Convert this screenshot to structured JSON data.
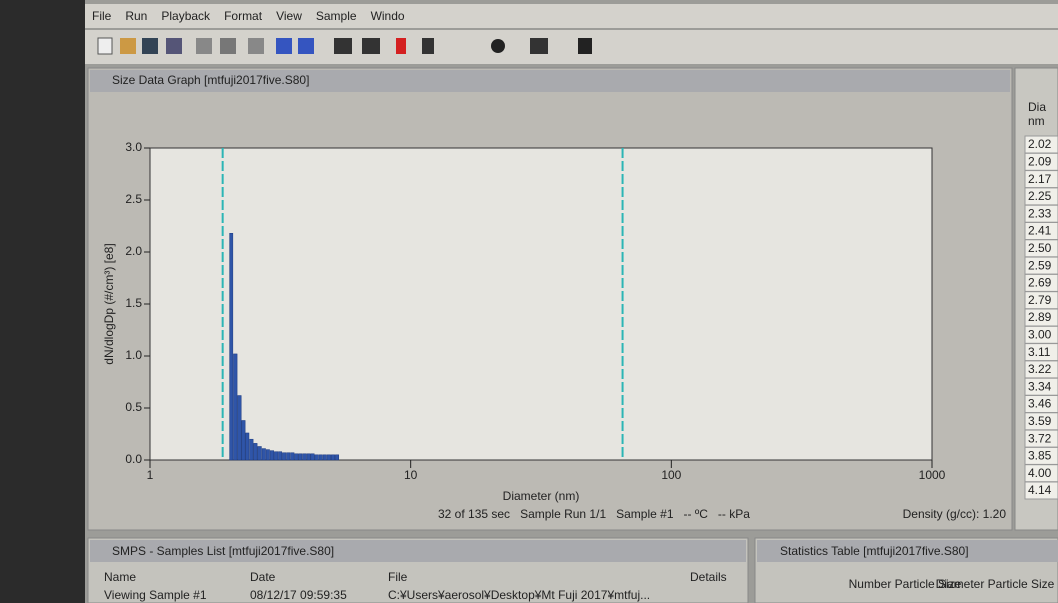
{
  "menu": [
    "File",
    "Run",
    "Playback",
    "Format",
    "View",
    "Sample",
    "Windo"
  ],
  "graph_window": {
    "title": "Size Data Graph [mtfuji2017five.S80]"
  },
  "chart_data": {
    "type": "bar",
    "x_label": "Diameter (nm)",
    "y_label": "dN/dlogDp (#/cm³) [e8]",
    "x": [
      2.02,
      2.09,
      2.17,
      2.25,
      2.33,
      2.41,
      2.5,
      2.59,
      2.69,
      2.79,
      2.89,
      3.0,
      3.11,
      3.22,
      3.34,
      3.46,
      3.59,
      3.72,
      3.85,
      4.0,
      4.14,
      4.29,
      4.45,
      4.61,
      4.78,
      4.96,
      5.14
    ],
    "values": [
      2.18,
      1.02,
      0.62,
      0.38,
      0.26,
      0.2,
      0.16,
      0.13,
      0.11,
      0.1,
      0.09,
      0.08,
      0.08,
      0.07,
      0.07,
      0.07,
      0.06,
      0.06,
      0.06,
      0.06,
      0.06,
      0.05,
      0.05,
      0.05,
      0.05,
      0.05,
      0.05
    ],
    "color": "#2f55a8",
    "log_x": true,
    "xlim": [
      1,
      1000
    ],
    "ylim": [
      0,
      3.0
    ],
    "xticks": [
      1,
      10,
      100,
      1000
    ],
    "yticks": [
      {
        "value": 0,
        "label": "0.0"
      },
      {
        "value": 0.5,
        "label": "0.5"
      },
      {
        "value": 1,
        "label": "1.0"
      },
      1.5,
      {
        "value": 2,
        "label": "2.0"
      },
      2.5,
      {
        "value": 3,
        "label": "3.0"
      }
    ],
    "boundaries": [
      1.9,
      65
    ],
    "boundary_color": "#2bb5b5"
  },
  "status": [
    "32 of 135 sec",
    "Sample Run 1/1",
    "Sample #1",
    "-- ºC",
    "-- kPa"
  ],
  "density": "Density (g/cc): 1.20",
  "side_table": {
    "header": [
      "Dia",
      "nm"
    ],
    "rows": [
      "2.02",
      "2.09",
      "2.17",
      "2.25",
      "2.33",
      "2.41",
      "2.50",
      "2.59",
      "2.69",
      "2.79",
      "2.89",
      "3.00",
      "3.11",
      "3.22",
      "3.34",
      "3.46",
      "3.59",
      "3.72",
      "3.85",
      "4.00",
      "4.14"
    ]
  },
  "samples_list": {
    "title": "SMPS - Samples List [mtfuji2017five.S80]",
    "columns": [
      "Name",
      "Date",
      "File",
      "Details"
    ],
    "rows": [
      [
        "Viewing Sample #1",
        "08/12/17 09:59:35",
        "C:¥Users¥aerosol¥Desktop¥Mt Fuji 2017¥mtfuj..."
      ]
    ]
  },
  "statistics": {
    "title": "Statistics Table [mtfuji2017five.S80]",
    "columns": [
      "Number Particle Size",
      "Diameter Particle Size"
    ]
  }
}
